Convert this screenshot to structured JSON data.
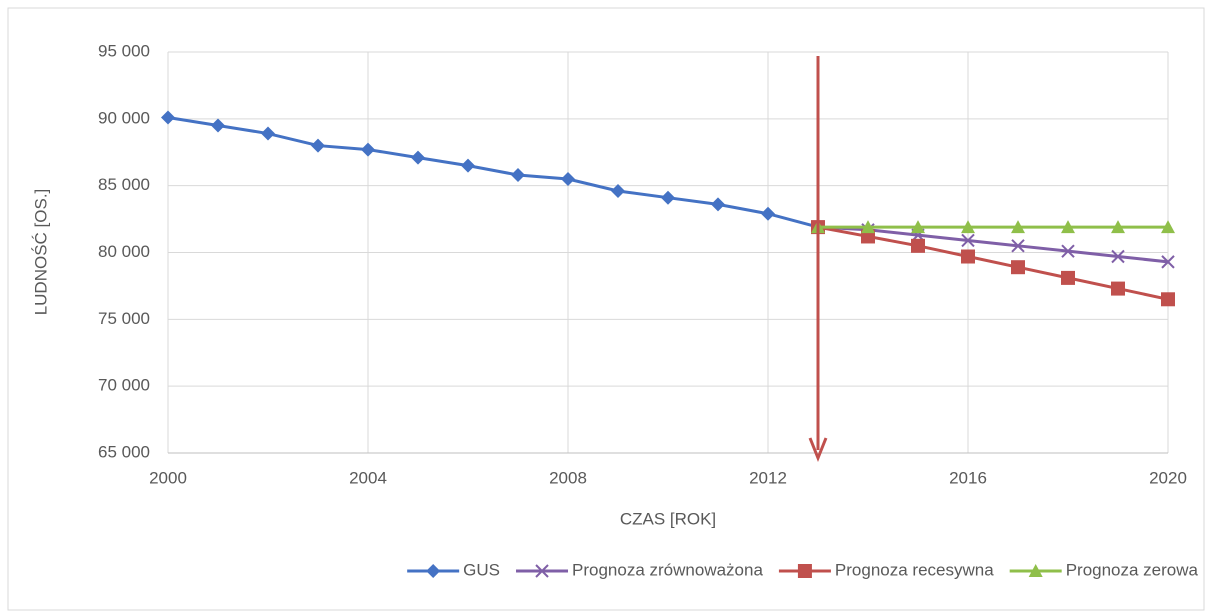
{
  "chart_data": {
    "type": "line",
    "xlabel": "CZAS [ROK]",
    "ylabel": "LUDNOŚĆ [OS.]",
    "x": [
      2000,
      2001,
      2002,
      2003,
      2004,
      2005,
      2006,
      2007,
      2008,
      2009,
      2010,
      2011,
      2012,
      2013,
      2014,
      2015,
      2016,
      2017,
      2018,
      2019,
      2020
    ],
    "series": [
      {
        "name": "GUS",
        "color": "#4472c4",
        "marker": "diamond",
        "values": [
          90100,
          89500,
          88900,
          88000,
          87700,
          87100,
          86500,
          85800,
          85500,
          84600,
          84100,
          83600,
          82900,
          81900,
          null,
          null,
          null,
          null,
          null,
          null,
          null
        ]
      },
      {
        "name": "Prognoza zrównoważona",
        "color": "#7f5fa7",
        "marker": "x",
        "values": [
          null,
          null,
          null,
          null,
          null,
          null,
          null,
          null,
          null,
          null,
          null,
          null,
          null,
          81900,
          81700,
          81300,
          80900,
          80500,
          80100,
          79700,
          79300
        ]
      },
      {
        "name": "Prognoza recesywna",
        "color": "#c0504d",
        "marker": "square",
        "values": [
          null,
          null,
          null,
          null,
          null,
          null,
          null,
          null,
          null,
          null,
          null,
          null,
          null,
          81900,
          81200,
          80500,
          79700,
          78900,
          78100,
          77300,
          76500
        ]
      },
      {
        "name": "Prognoza zerowa",
        "color": "#8fbf4a",
        "marker": "triangle",
        "values": [
          null,
          null,
          null,
          null,
          null,
          null,
          null,
          null,
          null,
          null,
          null,
          null,
          null,
          81900,
          81900,
          81900,
          81900,
          81900,
          81900,
          81900,
          81900
        ]
      }
    ],
    "xlim": [
      2000,
      2020
    ],
    "xticks": [
      2000,
      2004,
      2008,
      2012,
      2016,
      2020
    ],
    "ylim": [
      65000,
      95000
    ],
    "yticks": [
      {
        "value": 65000,
        "label": "65 000"
      },
      {
        "value": 70000,
        "label": "70 000"
      },
      {
        "value": 75000,
        "label": "75 000"
      },
      {
        "value": 80000,
        "label": "80 000"
      },
      {
        "value": 85000,
        "label": "85 000"
      },
      {
        "value": 90000,
        "label": "90 000"
      },
      {
        "value": 95000,
        "label": "95 000"
      }
    ],
    "grid": true,
    "legend": "bottom"
  }
}
